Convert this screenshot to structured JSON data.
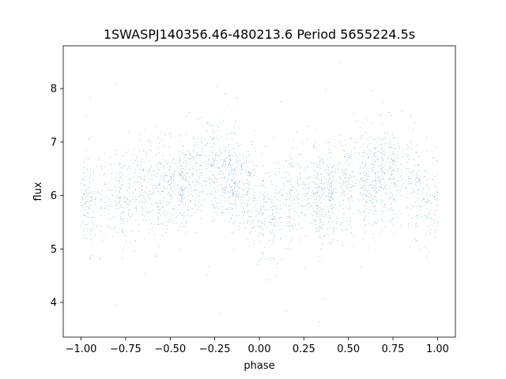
{
  "chart_data": {
    "type": "scatter",
    "title": "1SWASPJ140356.46-480213.6 Period 5655224.5s",
    "xlabel": "phase",
    "ylabel": "flux",
    "xlim": [
      -1.1,
      1.1
    ],
    "ylim": [
      3.35,
      8.8
    ],
    "x_ticks": [
      {
        "value": -1.0,
        "label": "−1.00"
      },
      {
        "value": -0.75,
        "label": "−0.75"
      },
      {
        "value": -0.5,
        "label": "−0.50"
      },
      {
        "value": -0.25,
        "label": "−0.25"
      },
      {
        "value": 0.0,
        "label": "0.00"
      },
      {
        "value": 0.25,
        "label": "0.25"
      },
      {
        "value": 0.5,
        "label": "0.50"
      },
      {
        "value": 0.75,
        "label": "0.75"
      },
      {
        "value": 1.0,
        "label": "1.00"
      }
    ],
    "y_ticks": [
      {
        "value": 4,
        "label": "4"
      },
      {
        "value": 5,
        "label": "5"
      },
      {
        "value": 6,
        "label": "6"
      },
      {
        "value": 7,
        "label": "7"
      },
      {
        "value": 8,
        "label": "8"
      }
    ],
    "grid": false,
    "series": [
      {
        "color": "#1f77b4",
        "profile_phase": [
          -1.0,
          -0.9,
          -0.8,
          -0.7,
          -0.6,
          -0.5,
          -0.4,
          -0.3,
          -0.2,
          -0.1,
          0.0,
          0.1,
          0.2,
          0.3,
          0.4,
          0.5,
          0.6,
          0.7,
          0.8,
          0.9,
          1.0
        ],
        "profile_flux": [
          5.9,
          5.85,
          6.0,
          6.1,
          6.15,
          6.1,
          6.25,
          6.55,
          6.45,
          6.2,
          5.8,
          5.75,
          5.95,
          6.05,
          6.05,
          6.2,
          6.25,
          6.5,
          6.35,
          6.05,
          5.9
        ],
        "typical_scatter": 0.45,
        "total_points": 36000
      }
    ]
  }
}
